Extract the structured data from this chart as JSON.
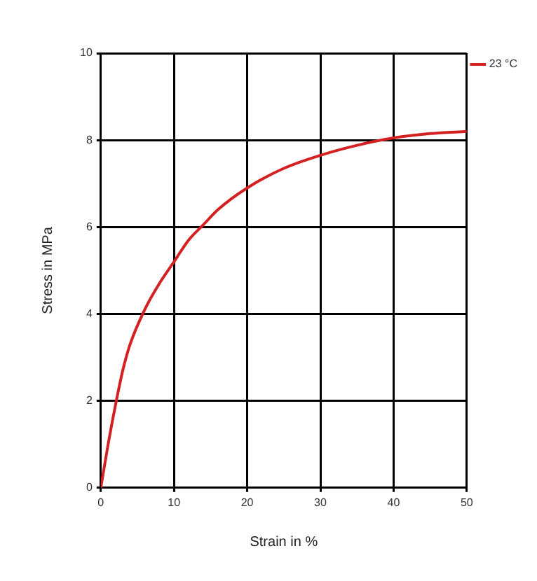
{
  "chart_data": {
    "type": "line",
    "xlabel": "Strain in %",
    "ylabel": "Stress in MPa",
    "xlim": [
      0,
      50
    ],
    "xticks": [
      0,
      10,
      20,
      30,
      40,
      50
    ],
    "ylim": [
      0,
      10
    ],
    "yticks": [
      0,
      2,
      4,
      6,
      8,
      10
    ],
    "grid": true,
    "legend": "top right",
    "marker": "none",
    "line_style": "solid",
    "series": [
      {
        "name": "23 °C",
        "color": "#d42020",
        "x": [
          0,
          1,
          2,
          3,
          4,
          6,
          8,
          10,
          12,
          14,
          16,
          20,
          25,
          30,
          35,
          40,
          45,
          50
        ],
        "values": [
          0,
          1,
          1.9,
          2.7,
          3.3,
          4.1,
          4.7,
          5.2,
          5.7,
          6.05,
          6.4,
          6.9,
          7.35,
          7.65,
          7.88,
          8.05,
          8.15,
          8.2
        ]
      }
    ]
  }
}
